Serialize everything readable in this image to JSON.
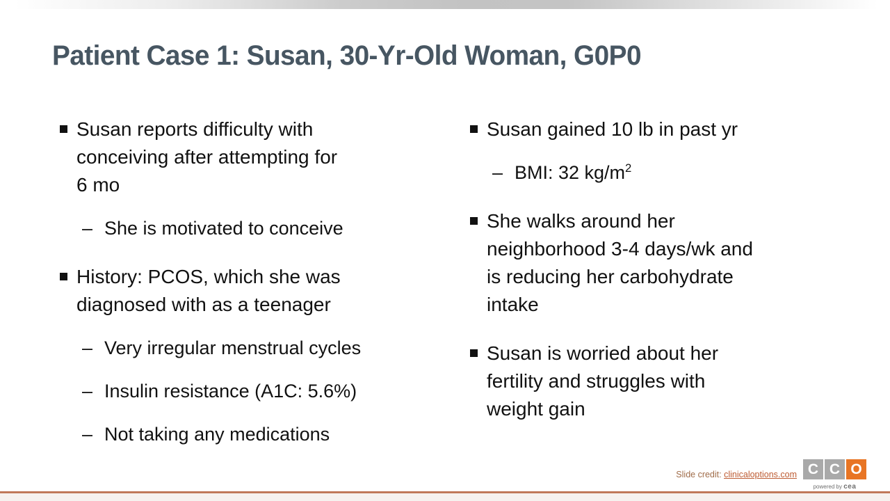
{
  "slide": {
    "title": "Patient Case 1: Susan, 30-Yr-Old Woman, G0P0",
    "columns": [
      {
        "items": [
          {
            "level": 1,
            "text": "Susan reports difficulty with\nconceiving after attempting for\n6 mo"
          },
          {
            "level": 2,
            "text": "She is motivated to conceive"
          },
          {
            "level": 1,
            "text": "History: PCOS, which she was\ndiagnosed with as a teenager"
          },
          {
            "level": 2,
            "text": "Very irregular menstrual cycles"
          },
          {
            "level": 2,
            "text": "Insulin resistance (A1C: 5.6%)"
          },
          {
            "level": 2,
            "text": "Not taking any medications"
          }
        ]
      },
      {
        "items": [
          {
            "level": 1,
            "text": "Susan gained 10 lb in past yr"
          },
          {
            "level": 2,
            "text": "BMI: 32 kg/m",
            "sup": "2"
          },
          {
            "level": 1,
            "text": "She walks around her\nneighborhood 3-4 days/wk and\nis reducing her carbohydrate\nintake"
          },
          {
            "level": 1,
            "text": "Susan is worried about her\nfertility and struggles with\nweight gain"
          }
        ]
      }
    ],
    "glyphs": {
      "dash": "–"
    },
    "footer": {
      "credit_label": "Slide credit: ",
      "credit_link": "clinicaloptions.com",
      "logo": {
        "letters": [
          "C",
          "C",
          "O"
        ],
        "tagline_prefix": "powered by ",
        "tagline_brand": "cea"
      }
    },
    "colors": {
      "title": "#475662",
      "body_text": "#111111",
      "top_bar_gray": "#c4c4c4",
      "credit_label": "#a06c49",
      "credit_link": "#bd5b32",
      "logo_gray": "#a9a9a9",
      "logo_orange": "#e87524",
      "bottom_line": "#c0795a"
    }
  }
}
